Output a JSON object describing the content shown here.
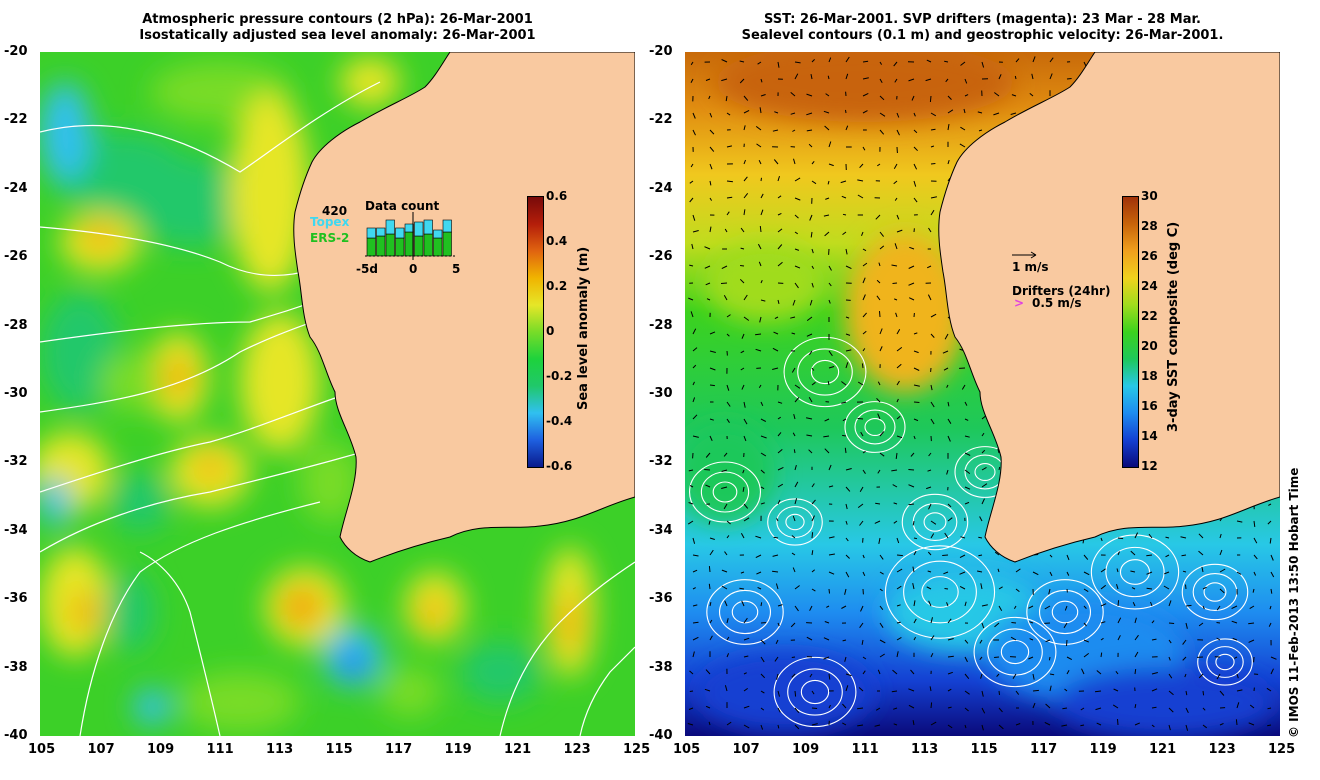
{
  "left_panel": {
    "title_line1": "Atmospheric pressure contours (2 hPa): 26-Mar-2001",
    "title_line2": "Isostatically adjusted sea level anomaly: 26-Mar-2001",
    "colorbar": {
      "label": "Sea level anomaly (m)",
      "ticks": [
        "0.6",
        "0.4",
        "0.2",
        "0",
        "-0.2",
        "-0.4",
        "-0.6"
      ],
      "range": [
        -0.6,
        0.6
      ]
    },
    "data_count": {
      "title": "Data count",
      "count": "420",
      "topex_label": "Topex",
      "ers_label": "ERS-2",
      "axis_labels": [
        "-5d",
        "0",
        "5"
      ],
      "topex_color": "#40d8f0",
      "ers_color": "#20c020",
      "topex_values": [
        0.25,
        0.2,
        0.35,
        0.25,
        0.2,
        0.35,
        0.35,
        0.2,
        0.3
      ],
      "ers_values": [
        0.45,
        0.5,
        0.55,
        0.45,
        0.6,
        0.5,
        0.55,
        0.45,
        0.6
      ]
    }
  },
  "right_panel": {
    "title_line1": "SST: 26-Mar-2001. SVP drifters (magenta): 23 Mar - 28 Mar.",
    "title_line2": "Sealevel contours (0.1 m) and geostrophic velocity: 26-Mar-2001.",
    "colorbar": {
      "label": "3-day SST composite (deg C)",
      "ticks": [
        "30",
        "28",
        "26",
        "24",
        "22",
        "20",
        "18",
        "16",
        "14",
        "12"
      ],
      "range": [
        12,
        30
      ]
    },
    "velocity_legend": "1 m/s",
    "drifter_legend_title": "Drifters (24hr)",
    "drifter_legend_speed": "0.5 m/s",
    "drifter_color": "#e040e0"
  },
  "axes": {
    "lat_ticks": [
      "-20",
      "-22",
      "-24",
      "-26",
      "-28",
      "-30",
      "-32",
      "-34",
      "-36",
      "-38",
      "-40"
    ],
    "lon_ticks": [
      "105",
      "107",
      "109",
      "111",
      "113",
      "115",
      "117",
      "119",
      "121",
      "123",
      "125"
    ],
    "lat_range": [
      -40,
      -20
    ],
    "lon_range": [
      105,
      125
    ]
  },
  "colors": {
    "land": "#f9c9a0",
    "sla_scale": [
      "#0a1a8c",
      "#1e60e0",
      "#30c0f0",
      "#20c86a",
      "#1ed23c",
      "#78dc28",
      "#e6e628",
      "#f0b400",
      "#e06410",
      "#b41e0a",
      "#780a0a"
    ],
    "sst_scale": [
      "#0a0a7a",
      "#1440d2",
      "#1e8cf0",
      "#28c8e6",
      "#1ec85a",
      "#3cd21e",
      "#a0dc1e",
      "#f0d21e",
      "#f0a01e",
      "#c8640a",
      "#a0320a"
    ]
  },
  "credit": "© IMOS 11-Feb-2013 13:50 Hobart Time"
}
